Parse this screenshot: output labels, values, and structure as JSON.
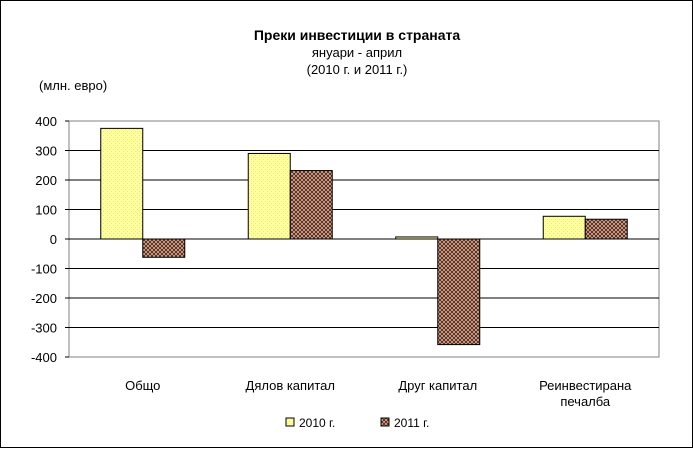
{
  "chart_data": {
    "type": "bar",
    "title": "Преки  инвестиции в страната",
    "subtitle_lines": [
      "януари - април",
      "(2010 г. и 2011 г.)"
    ],
    "ylabel": "(млн. евро)",
    "xlabel": "",
    "ylim": [
      -400,
      400
    ],
    "yticks": [
      400,
      300,
      200,
      100,
      0,
      -100,
      -200,
      -300,
      -400
    ],
    "ytick_labels": [
      "400",
      "300",
      "200",
      "100",
      "0",
      "-100",
      "-200",
      "-300",
      "-400"
    ],
    "categories": [
      [
        "Общо"
      ],
      [
        "Дялов капитал"
      ],
      [
        "Друг капитал"
      ],
      [
        "Реинвестирана",
        "печалба"
      ]
    ],
    "series": [
      {
        "name": "2010 г.",
        "values": [
          375,
          290,
          7,
          77
        ],
        "color": "#ffff99",
        "pattern": "light"
      },
      {
        "name": "2011 г.",
        "values": [
          -62,
          232,
          -358,
          67
        ],
        "color": "#996655",
        "pattern": "checker"
      }
    ],
    "grid": true,
    "legend_position": "bottom"
  }
}
